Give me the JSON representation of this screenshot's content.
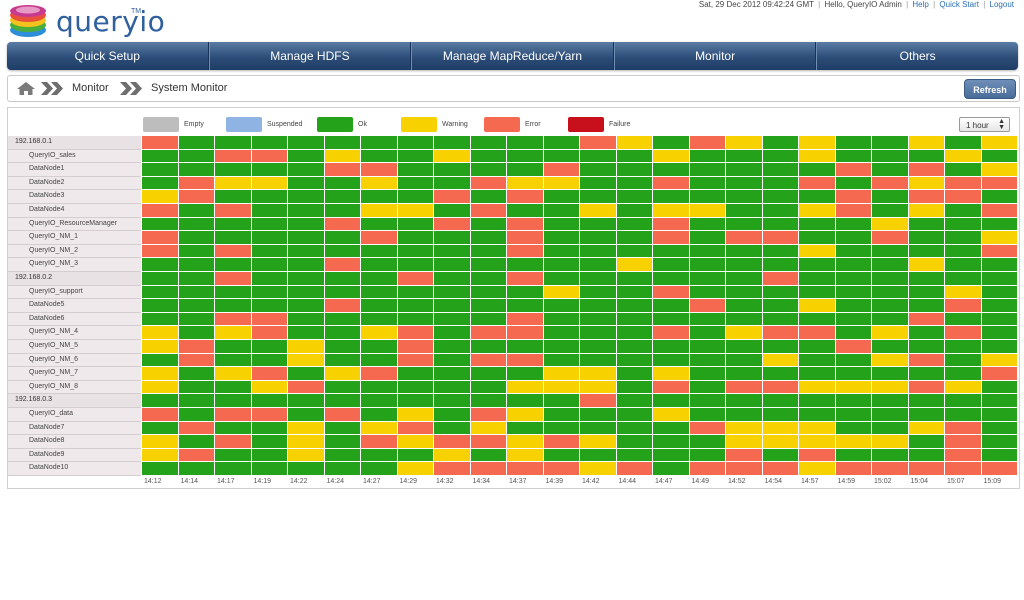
{
  "header": {
    "logo_text": "queryio",
    "logo_tm": "TM",
    "datetime": "Sat, 29 Dec 2012 09:42:24 GMT",
    "greeting": "Hello,  QueryIO Admin",
    "links": [
      "Help",
      "Quick Start",
      "Logout"
    ]
  },
  "nav": [
    "Quick Setup",
    "Manage HDFS",
    "Manage MapReduce/Yarn",
    "Monitor",
    "Others"
  ],
  "breadcrumb": [
    "Monitor",
    "System Monitor"
  ],
  "refresh_label": "Refresh",
  "legend": [
    {
      "label": "Empty",
      "color": "#bdbdbd"
    },
    {
      "label": "Suspended",
      "color": "#8fb3e3"
    },
    {
      "label": "Ok",
      "color": "#24a21a"
    },
    {
      "label": "Warning",
      "color": "#f7d100"
    },
    {
      "label": "Error",
      "color": "#f4694f"
    },
    {
      "label": "Failure",
      "color": "#c8101c"
    }
  ],
  "time_range": "1 hour",
  "status_colors": {
    "O": "#24a21a",
    "W": "#f7d100",
    "E": "#f4694f",
    "F": "#c8101c",
    "S": "#8fb3e3",
    "X": "#bdbdbd"
  },
  "times": [
    "14:12",
    "14:14",
    "14:17",
    "14:19",
    "14:22",
    "14:24",
    "14:27",
    "14:29",
    "14:32",
    "14:34",
    "14:37",
    "14:39",
    "14:42",
    "14:44",
    "14:47",
    "14:49",
    "14:52",
    "14:54",
    "14:57",
    "14:59",
    "15:02",
    "15:04",
    "15:07",
    "15:09"
  ],
  "rows": [
    {
      "name": "192.168.0.1",
      "type": "host",
      "status": "EOOOOOOOOOOOEWOEWOWOOWOW"
    },
    {
      "name": "QueryIO_sales",
      "type": "node",
      "status": "OOEEOWOOWOOOOOWOOOWOOOWO"
    },
    {
      "name": "DataNode1",
      "type": "node",
      "status": "OOOOOEEOOOOEOOOOOOOEOEOW"
    },
    {
      "name": "DataNode2",
      "type": "node",
      "status": "OEWWOOWOOEWWOOEOOOEOEWEE"
    },
    {
      "name": "DataNode3",
      "type": "node",
      "status": "WEOOOOOOEOEOOOOOOOOEOEEO"
    },
    {
      "name": "DataNode4",
      "type": "node",
      "status": "EOEOOOWWOEOOWOWWOOWEOWOE"
    },
    {
      "name": "QueryIO_ResourceManager",
      "type": "node",
      "status": "OOOOOEOOEOEOOOEOOOOOWOOO"
    },
    {
      "name": "QueryIO_NM_1",
      "type": "node",
      "status": "EOOOOOEOOOEOOOEOEEOOEOOW"
    },
    {
      "name": "QueryIO_NM_2",
      "type": "node",
      "status": "EOEOOOOOOOEOOOOOOOWOOOOE"
    },
    {
      "name": "QueryIO_NM_3",
      "type": "node",
      "status": "OOOOOEOOOOOOOWOOOOOOOWOO"
    },
    {
      "name": "192.168.0.2",
      "type": "host",
      "status": "OOEOOOOEOOEOOOOOOEOOOOOO"
    },
    {
      "name": "QueryIO_support",
      "type": "node",
      "status": "OOOOOOOOOOOWOOEOOOOOOOWO"
    },
    {
      "name": "DataNode5",
      "type": "node",
      "status": "OOOOOEOOOOOOOOOEOOWOOOEO"
    },
    {
      "name": "DataNode6",
      "type": "node",
      "status": "OOEEOOOOOOEOOOOOOOOOOEOO"
    },
    {
      "name": "QueryIO_NM_4",
      "type": "node",
      "status": "WOWEOOWEOEEOOOEOWEEOWOEO"
    },
    {
      "name": "QueryIO_NM_5",
      "type": "node",
      "status": "WEOOWOOEOOOOOOOOOOOEOOOO"
    },
    {
      "name": "QueryIO_NM_6",
      "type": "node",
      "status": "OEOOWOOEOEEOOOOOOWOOWEOW"
    },
    {
      "name": "QueryIO_NM_7",
      "type": "node",
      "status": "WOWEOWEOOOOWWOWOOOOOOOOE"
    },
    {
      "name": "QueryIO_NM_8",
      "type": "node",
      "status": "WOOWEOOOOOWWWOEOEEWWWEWO"
    },
    {
      "name": "192.168.0.3",
      "type": "host",
      "status": "OOOOOOOOOOOOEOOOOOOOOOOO"
    },
    {
      "name": "QueryIO_data",
      "type": "node",
      "status": "EOEEOEOWOEWOOOWOOOOOOOOO"
    },
    {
      "name": "DataNode7",
      "type": "node",
      "status": "OEOOWOWEOWOOOOOEWWWOOWEO"
    },
    {
      "name": "DataNode8",
      "type": "node",
      "status": "WOEOWOEWEEWEWOOOWWWWWOEO"
    },
    {
      "name": "DataNode9",
      "type": "node",
      "status": "WEOOWOOOWOWOOOOOEOEOOOEO"
    },
    {
      "name": "DataNode10",
      "type": "node",
      "status": "OOOOOOOWEEEEWEOEEEWEEEEE"
    }
  ]
}
